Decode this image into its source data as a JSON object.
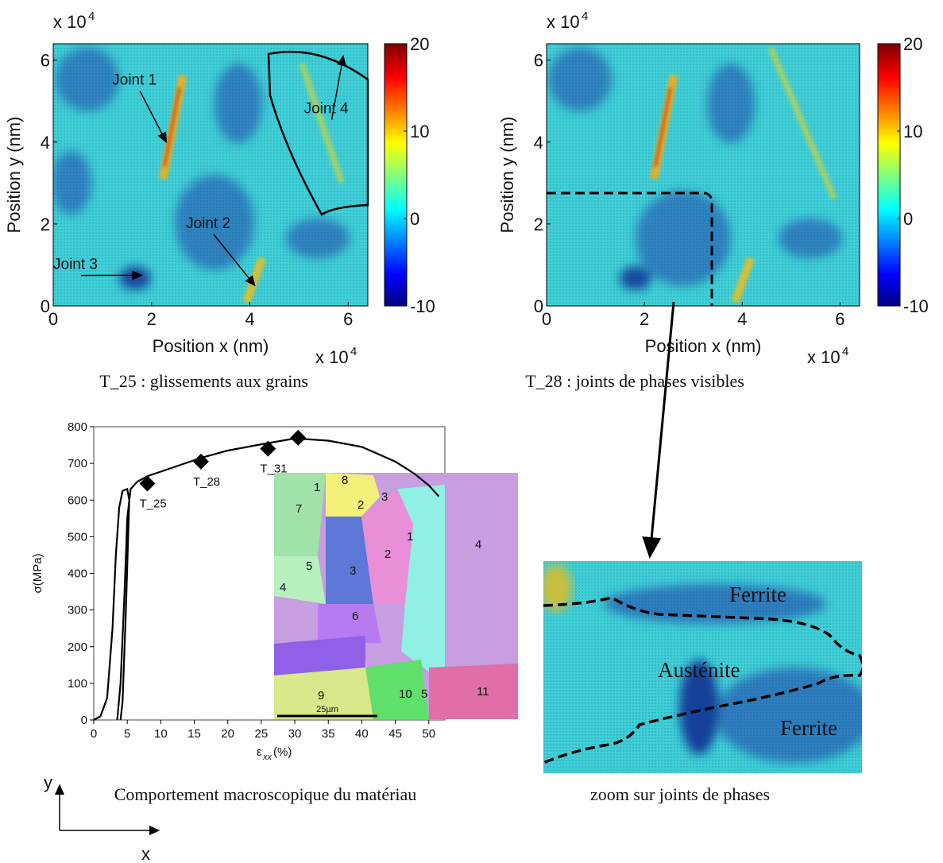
{
  "maps": [
    {
      "caption": "T_25 : glissements aux grains",
      "xlabel": "Position x (nm)",
      "ylabel": "Position y (nm)",
      "exp_base": "x 10",
      "exp_power": "4",
      "xlim": [
        0,
        6.4
      ],
      "ylim": [
        0,
        6.4
      ],
      "xticks": [
        0,
        2,
        4,
        6
      ],
      "yticks": [
        0,
        2,
        4,
        6
      ],
      "clim": [
        -10,
        20
      ],
      "cticks": [
        20,
        10,
        0,
        -10
      ],
      "annotations": [
        {
          "text": "Joint 1",
          "x": 1.2,
          "y": 5.4,
          "tx": 2.3,
          "ty": 4.0
        },
        {
          "text": "Joint 2",
          "x": 2.7,
          "y": 1.9,
          "tx": 4.1,
          "ty": 0.5
        },
        {
          "text": "Joint 3",
          "x": 0,
          "y": 0.9,
          "tx": 1.8,
          "ty": 0.75
        },
        {
          "text": "Joint 4",
          "x": 5.1,
          "y": 4.7,
          "tx": 5.9,
          "ty": 6.1
        }
      ]
    },
    {
      "caption": "T_28 : joints de phases visibles",
      "xlabel": "Position x (nm)",
      "ylabel": "Position y (nm)",
      "exp_base": "x 10",
      "exp_power": "4",
      "xlim": [
        0,
        6.4
      ],
      "ylim": [
        0,
        6.4
      ],
      "xticks": [
        0,
        2,
        4,
        6
      ],
      "yticks": [
        0,
        2,
        4,
        6
      ],
      "clim": [
        -10,
        20
      ],
      "cticks": [
        20,
        10,
        0,
        -10
      ],
      "annotations": []
    }
  ],
  "stress_strain": {
    "caption": "Comportement macroscopique du matériau",
    "ylabel": "σ(MPa)",
    "xlabel_symbol": "ε",
    "xlabel_sub": "xx",
    "xlabel_unit": "(%)",
    "xlim": [
      0,
      52.4
    ],
    "ylim": [
      0,
      800
    ],
    "xticks": [
      0,
      5,
      10,
      15,
      20,
      25,
      30,
      35,
      40,
      45,
      50
    ],
    "yticks": [
      0,
      100,
      200,
      300,
      400,
      500,
      600,
      700,
      800
    ],
    "curves": [
      {
        "x": [
          0,
          1,
          2,
          2.8,
          3.3,
          3.8,
          4.3,
          5,
          5.3,
          4.8,
          4.3,
          4
        ],
        "y": [
          0,
          10,
          60,
          250,
          450,
          580,
          625,
          630,
          600,
          300,
          50,
          0
        ]
      },
      {
        "x": [
          3.5,
          4,
          4.6,
          5,
          5.5,
          6.5,
          8,
          12,
          16,
          20,
          25,
          30,
          35,
          40,
          45,
          48,
          50,
          51.5
        ],
        "y": [
          0,
          100,
          350,
          550,
          630,
          650,
          665,
          690,
          715,
          735,
          752,
          768,
          762,
          745,
          705,
          670,
          640,
          610
        ]
      }
    ],
    "points": [
      {
        "label": "T_25",
        "x": 8,
        "y": 645
      },
      {
        "label": "T_28",
        "x": 16,
        "y": 705
      },
      {
        "label": "T_31",
        "x": 26,
        "y": 740
      },
      {
        "x": 30.5,
        "y": 770
      }
    ],
    "inset": {
      "scale_bar": "25µm",
      "grains": [
        "1",
        "2",
        "3",
        "4",
        "5",
        "6",
        "7",
        "8",
        "9",
        "10",
        "11"
      ],
      "red_grains": [
        "1",
        "2",
        "3",
        "4",
        "5"
      ]
    }
  },
  "zoom": {
    "caption": "zoom sur joints de phases",
    "top": "Ferrite",
    "middle": "Austénite",
    "bottom": "Ferrite"
  },
  "axes_icon": {
    "y": "y",
    "x": "x"
  }
}
